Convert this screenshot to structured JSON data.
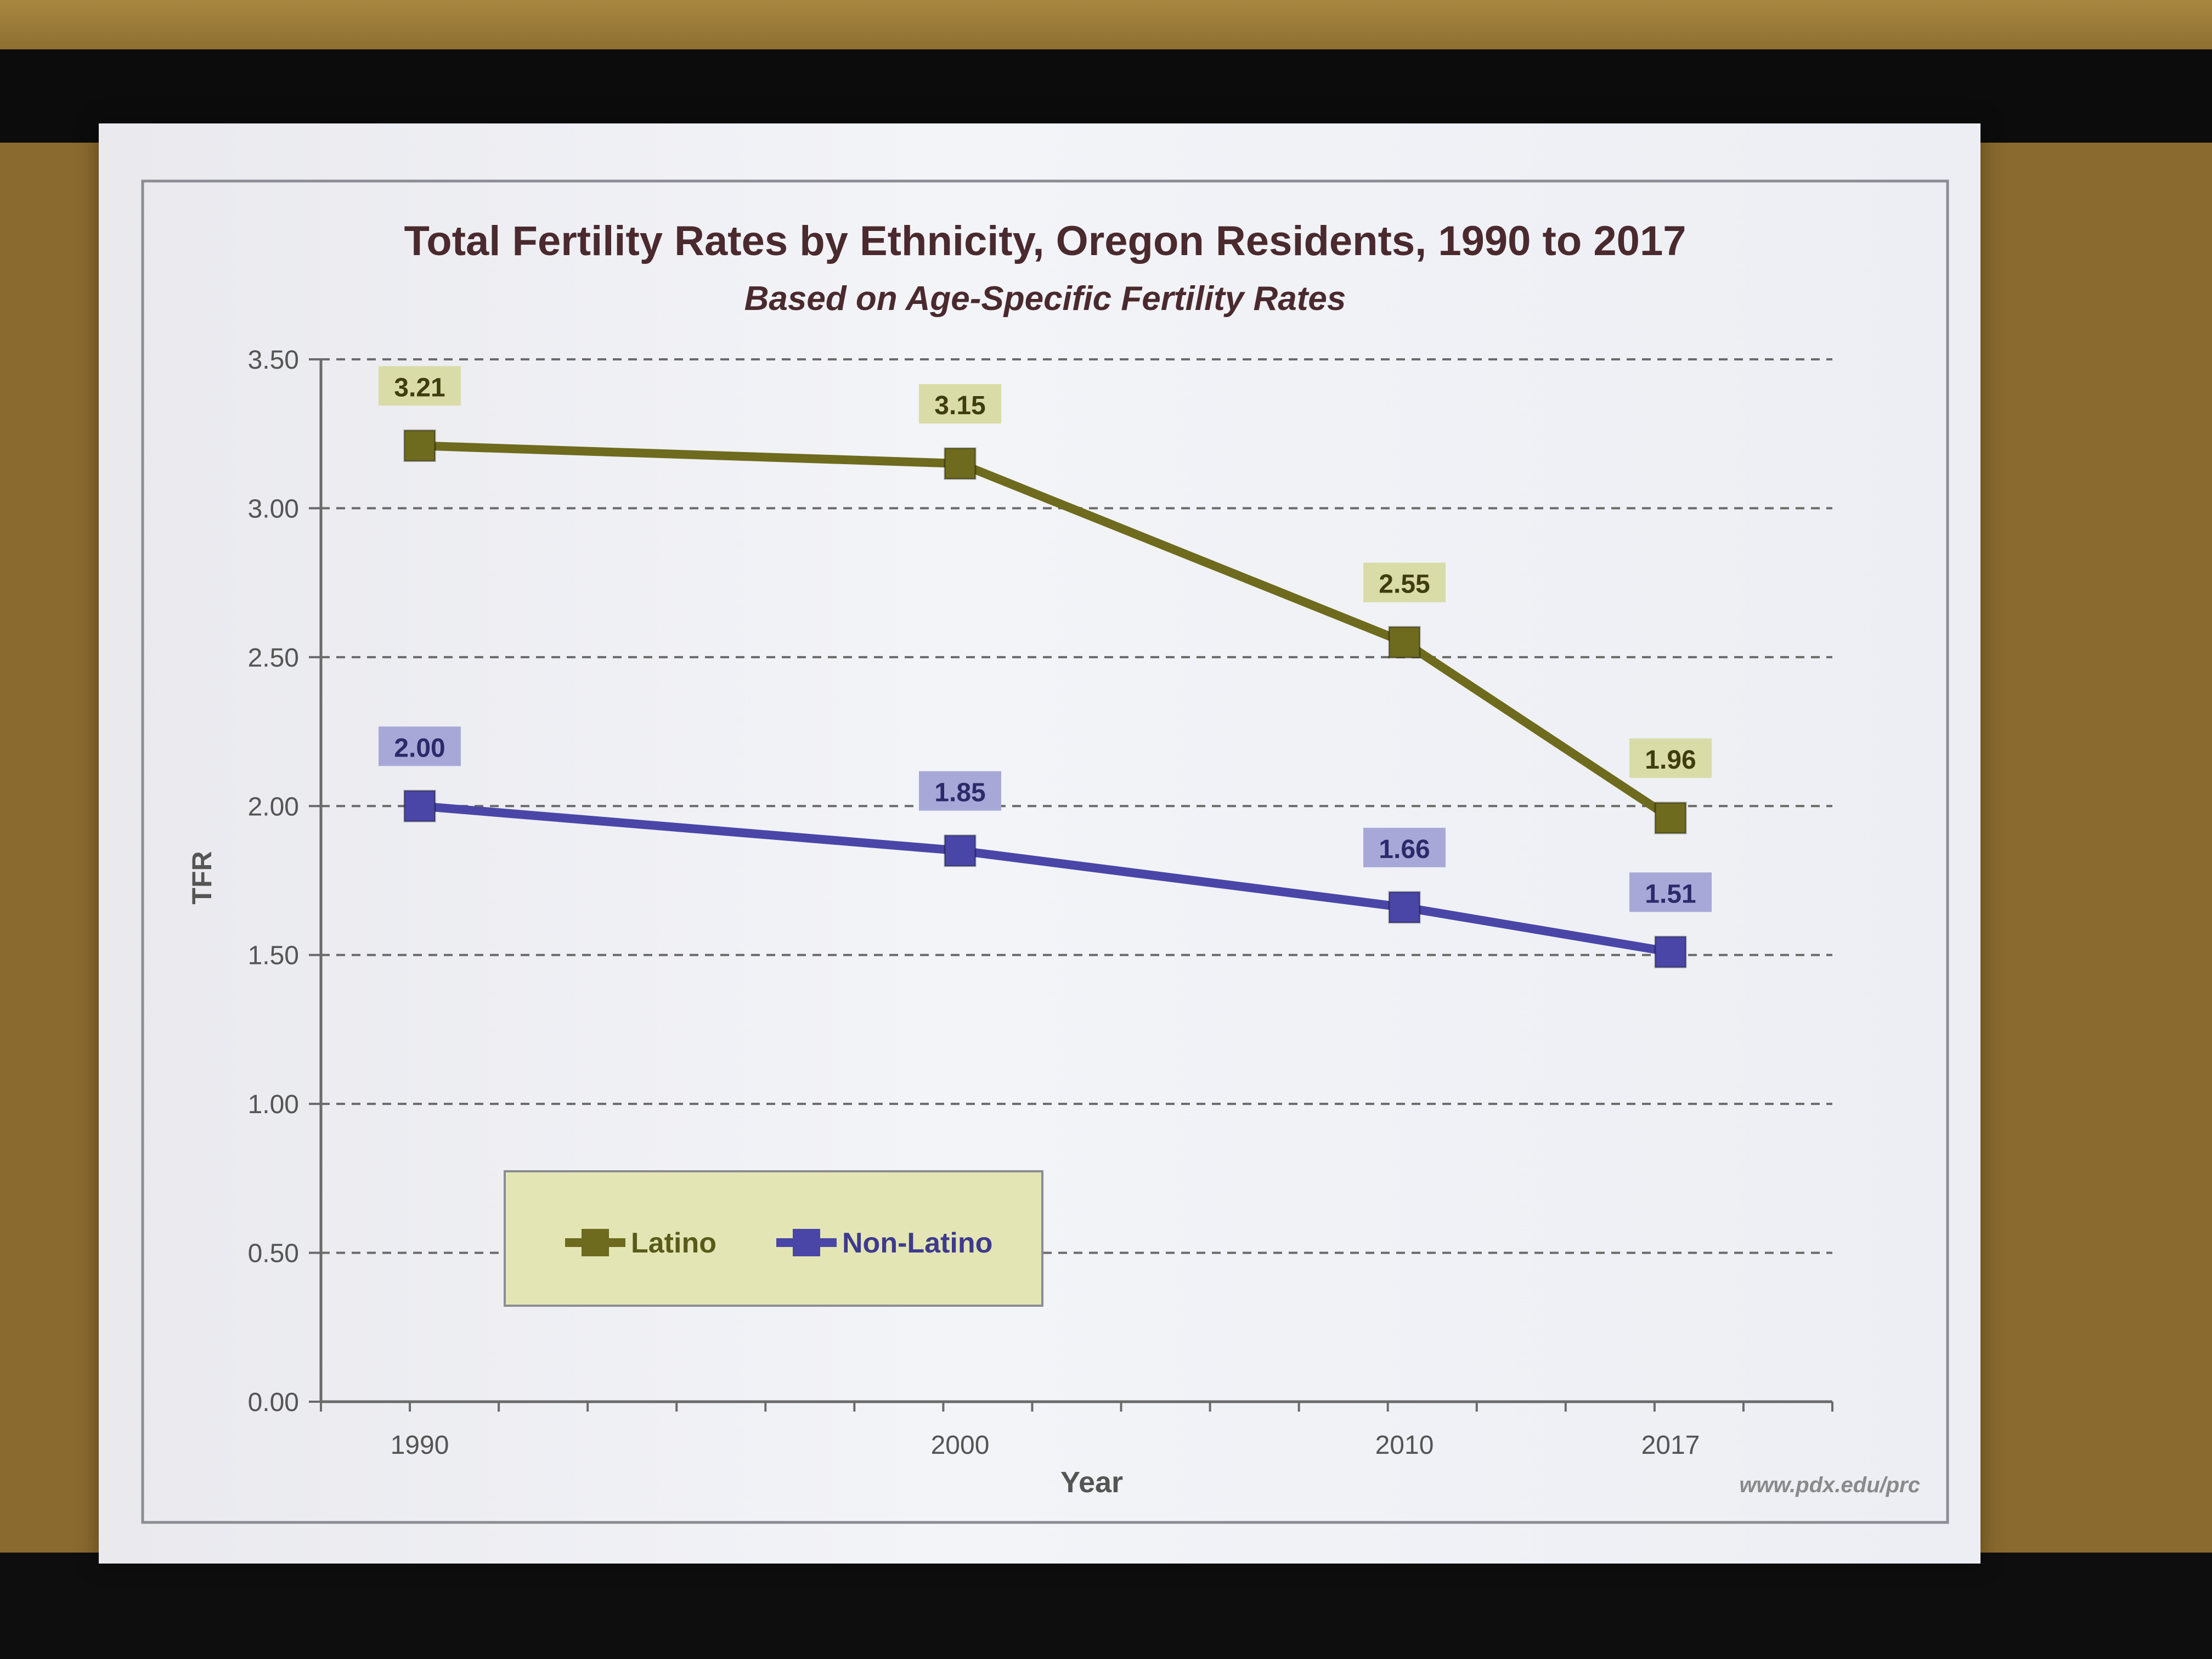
{
  "chart_data": {
    "type": "line",
    "title": "Total Fertility Rates by Ethnicity, Oregon Residents, 1990 to 2017",
    "subtitle": "Based on Age-Specific Fertility Rates",
    "xlabel": "Year",
    "ylabel": "TFR",
    "categories": [
      "1990",
      "2000",
      "2010",
      "2017"
    ],
    "ylim": [
      0,
      3.5
    ],
    "yticks": [
      "0.00",
      "0.50",
      "1.00",
      "1.50",
      "2.00",
      "2.50",
      "3.00",
      "3.50"
    ],
    "grid": true,
    "legend_position": "bottom-left",
    "series": [
      {
        "name": "Latino",
        "values": [
          3.21,
          3.15,
          2.55,
          1.96
        ],
        "labels": [
          "3.21",
          "3.15",
          "2.55",
          "1.96"
        ],
        "color": "#6e6b1e",
        "label_bg": "#d9dca6"
      },
      {
        "name": "Non-Latino",
        "values": [
          2.0,
          1.85,
          1.66,
          1.51
        ],
        "labels": [
          "2.00",
          "1.85",
          "1.66",
          "1.51"
        ],
        "color": "#4a46a8",
        "label_bg": "#a8a8d8"
      }
    ],
    "source_note": "www.pdx.edu/prc"
  },
  "colors": {
    "title": "#4a2a2e",
    "axis_text": "#555555",
    "legend_bg": "#e3e6b4",
    "frame": "#8c8c94"
  }
}
